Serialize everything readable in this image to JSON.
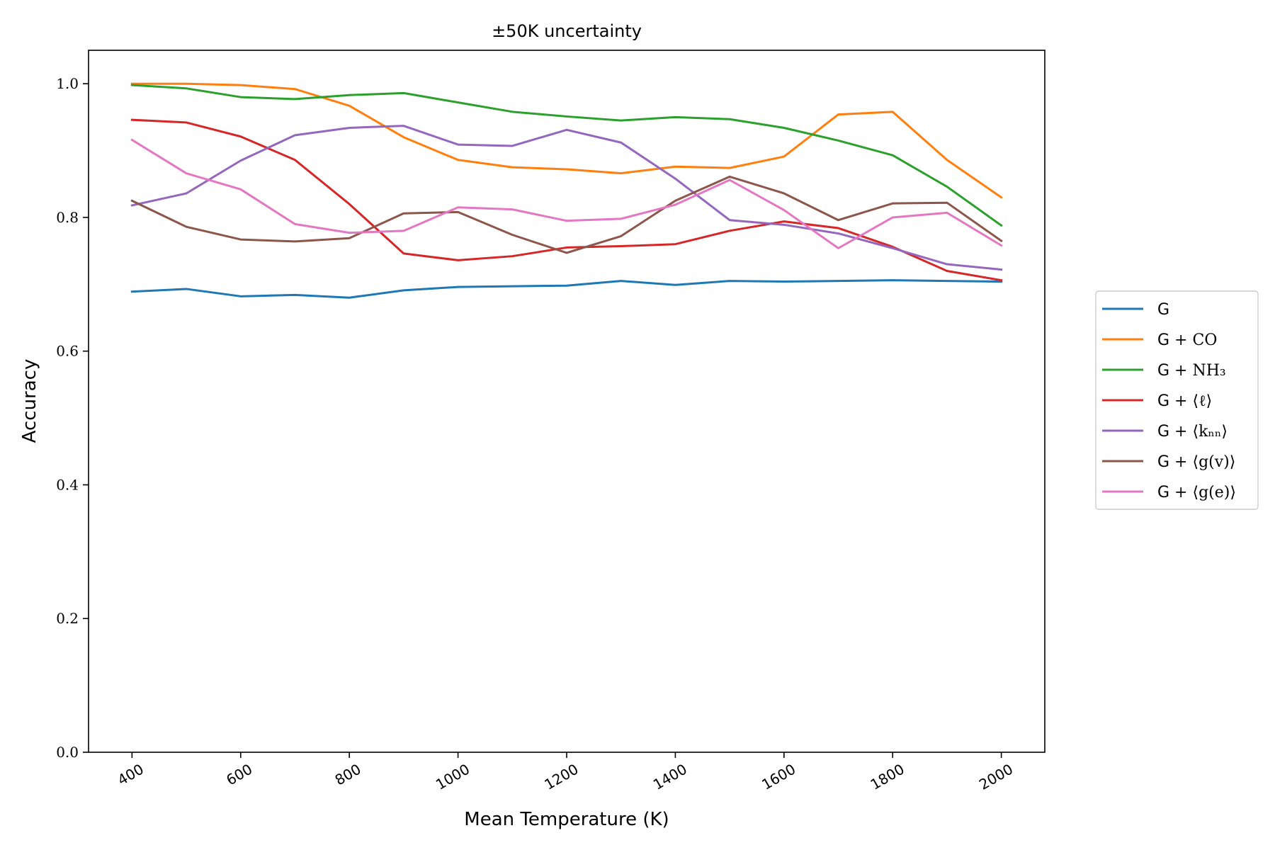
{
  "chart_data": {
    "type": "line",
    "title": "±50K uncertainty",
    "xlabel": "Mean Temperature (K)",
    "ylabel": "Accuracy",
    "xlim": [
      320,
      2080
    ],
    "ylim": [
      0.0,
      1.05
    ],
    "x_ticks": [
      400,
      600,
      800,
      1000,
      1200,
      1400,
      1600,
      1800,
      2000
    ],
    "y_ticks": [
      "0.0",
      "0.2",
      "0.4",
      "0.6",
      "0.8",
      "1.0"
    ],
    "y_tick_values": [
      0.0,
      0.2,
      0.4,
      0.6,
      0.8,
      1.0
    ],
    "grid": false,
    "legend_position": "center-right outside",
    "x": [
      400,
      500,
      600,
      700,
      800,
      900,
      1000,
      1100,
      1200,
      1300,
      1400,
      1500,
      1600,
      1700,
      1800,
      1900,
      2000
    ],
    "series": [
      {
        "prefix": "G",
        "suffix": "",
        "color": "#1f77b4",
        "values": [
          0.689,
          0.693,
          0.682,
          0.684,
          0.68,
          0.691,
          0.696,
          0.697,
          0.698,
          0.705,
          0.699,
          0.705,
          0.704,
          0.705,
          0.706,
          0.705,
          0.704
        ]
      },
      {
        "prefix": "G",
        "suffix": "+ CO",
        "color": "#ff7f0e",
        "values": [
          1.0,
          1.0,
          0.998,
          0.992,
          0.967,
          0.92,
          0.886,
          0.875,
          0.872,
          0.866,
          0.876,
          0.874,
          0.891,
          0.954,
          0.958,
          0.886,
          0.83
        ]
      },
      {
        "prefix": "G",
        "suffix": "+ NH₃",
        "color": "#2ca02c",
        "values": [
          0.998,
          0.993,
          0.98,
          0.977,
          0.983,
          0.986,
          0.972,
          0.958,
          0.951,
          0.945,
          0.95,
          0.947,
          0.934,
          0.915,
          0.893,
          0.846,
          0.788
        ]
      },
      {
        "prefix": "G",
        "suffix": "+ ⟨ℓ⟩",
        "color": "#d62728",
        "values": [
          0.946,
          0.942,
          0.921,
          0.886,
          0.82,
          0.746,
          0.736,
          0.742,
          0.755,
          0.757,
          0.76,
          0.78,
          0.794,
          0.784,
          0.756,
          0.72,
          0.706
        ]
      },
      {
        "prefix": "G",
        "suffix": "+ ⟨kₙₙ⟩",
        "color": "#9467bd",
        "values": [
          0.818,
          0.836,
          0.885,
          0.923,
          0.934,
          0.937,
          0.909,
          0.907,
          0.931,
          0.912,
          0.858,
          0.796,
          0.789,
          0.776,
          0.754,
          0.73,
          0.722
        ]
      },
      {
        "prefix": "G",
        "suffix": "+ ⟨g(v)⟩",
        "color": "#8c564b",
        "values": [
          0.825,
          0.786,
          0.767,
          0.764,
          0.769,
          0.806,
          0.808,
          0.774,
          0.747,
          0.772,
          0.825,
          0.861,
          0.836,
          0.796,
          0.821,
          0.822,
          0.765
        ]
      },
      {
        "prefix": "G",
        "suffix": "+ ⟨g(e)⟩",
        "color": "#e377c2",
        "values": [
          0.916,
          0.866,
          0.842,
          0.79,
          0.777,
          0.78,
          0.815,
          0.812,
          0.795,
          0.798,
          0.819,
          0.856,
          0.811,
          0.754,
          0.8,
          0.807,
          0.758
        ]
      }
    ]
  }
}
